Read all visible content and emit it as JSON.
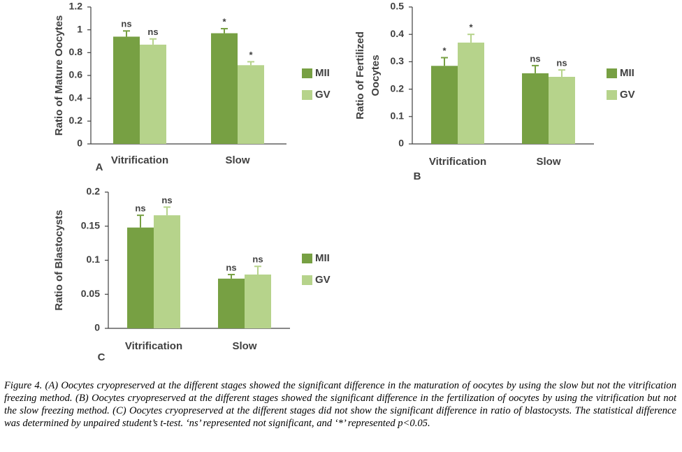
{
  "chart_data": [
    {
      "type": "bar",
      "panel": "A",
      "ylabel": [
        "Ratio of Mature Oocytes"
      ],
      "categories": [
        "Vitrification",
        "Slow"
      ],
      "series": [
        {
          "name": "MII",
          "color": "#77a043",
          "values": [
            0.94,
            0.97
          ],
          "errors": [
            0.05,
            0.04
          ],
          "annotations": [
            "ns",
            "*"
          ]
        },
        {
          "name": "GV",
          "color": "#b6d38b",
          "values": [
            0.87,
            0.69
          ],
          "errors": [
            0.05,
            0.03
          ],
          "annotations": [
            "ns",
            "*"
          ]
        }
      ],
      "ylim": [
        0,
        1.2
      ],
      "yticks": [
        0,
        0.2,
        0.4,
        0.6,
        0.8,
        1,
        1.2
      ],
      "grid": false,
      "legend": "right"
    },
    {
      "type": "bar",
      "panel": "B",
      "ylabel": [
        "Ratio of Fertilized",
        "Oocytes"
      ],
      "categories": [
        "Vitrification",
        "Slow"
      ],
      "series": [
        {
          "name": "MII",
          "color": "#77a043",
          "values": [
            0.285,
            0.258
          ],
          "errors": [
            0.03,
            0.028
          ],
          "annotations": [
            "*",
            "ns"
          ]
        },
        {
          "name": "GV",
          "color": "#b6d38b",
          "values": [
            0.37,
            0.245
          ],
          "errors": [
            0.03,
            0.025
          ],
          "annotations": [
            "*",
            "ns"
          ]
        }
      ],
      "ylim": [
        0,
        0.5
      ],
      "yticks": [
        0,
        0.1,
        0.2,
        0.3,
        0.4,
        0.5
      ],
      "grid": false,
      "legend": "right"
    },
    {
      "type": "bar",
      "panel": "C",
      "ylabel": [
        "Ratio of Blastocysts"
      ],
      "categories": [
        "Vitrification",
        "Slow"
      ],
      "series": [
        {
          "name": "MII",
          "color": "#77a043",
          "values": [
            0.148,
            0.073
          ],
          "errors": [
            0.018,
            0.006
          ],
          "annotations": [
            "ns",
            "ns"
          ]
        },
        {
          "name": "GV",
          "color": "#b6d38b",
          "values": [
            0.166,
            0.079
          ],
          "errors": [
            0.012,
            0.012
          ],
          "annotations": [
            "ns",
            "ns"
          ]
        }
      ],
      "ylim": [
        0,
        0.2
      ],
      "yticks": [
        0,
        0.05,
        0.1,
        0.15,
        0.2
      ],
      "grid": false,
      "legend": "right"
    }
  ],
  "caption": {
    "label": "Figure 4.",
    "text": "(A) Oocytes cryopreserved at the different stages showed the significant difference in the maturation of oocytes by using the slow but not the vitrification freezing method. (B) Oocytes cryopreserved at the different stages showed the significant difference in the fertilization of oocytes by using the vitrification but not the slow freezing method. (C) Oocytes cryopreserved at the different stages did not show the significant difference in ratio of blastocysts. The statistical difference was determined by unpaired student’s t-test. ‘ns’ represented not significant, and ‘*’ represented p<0.05."
  }
}
